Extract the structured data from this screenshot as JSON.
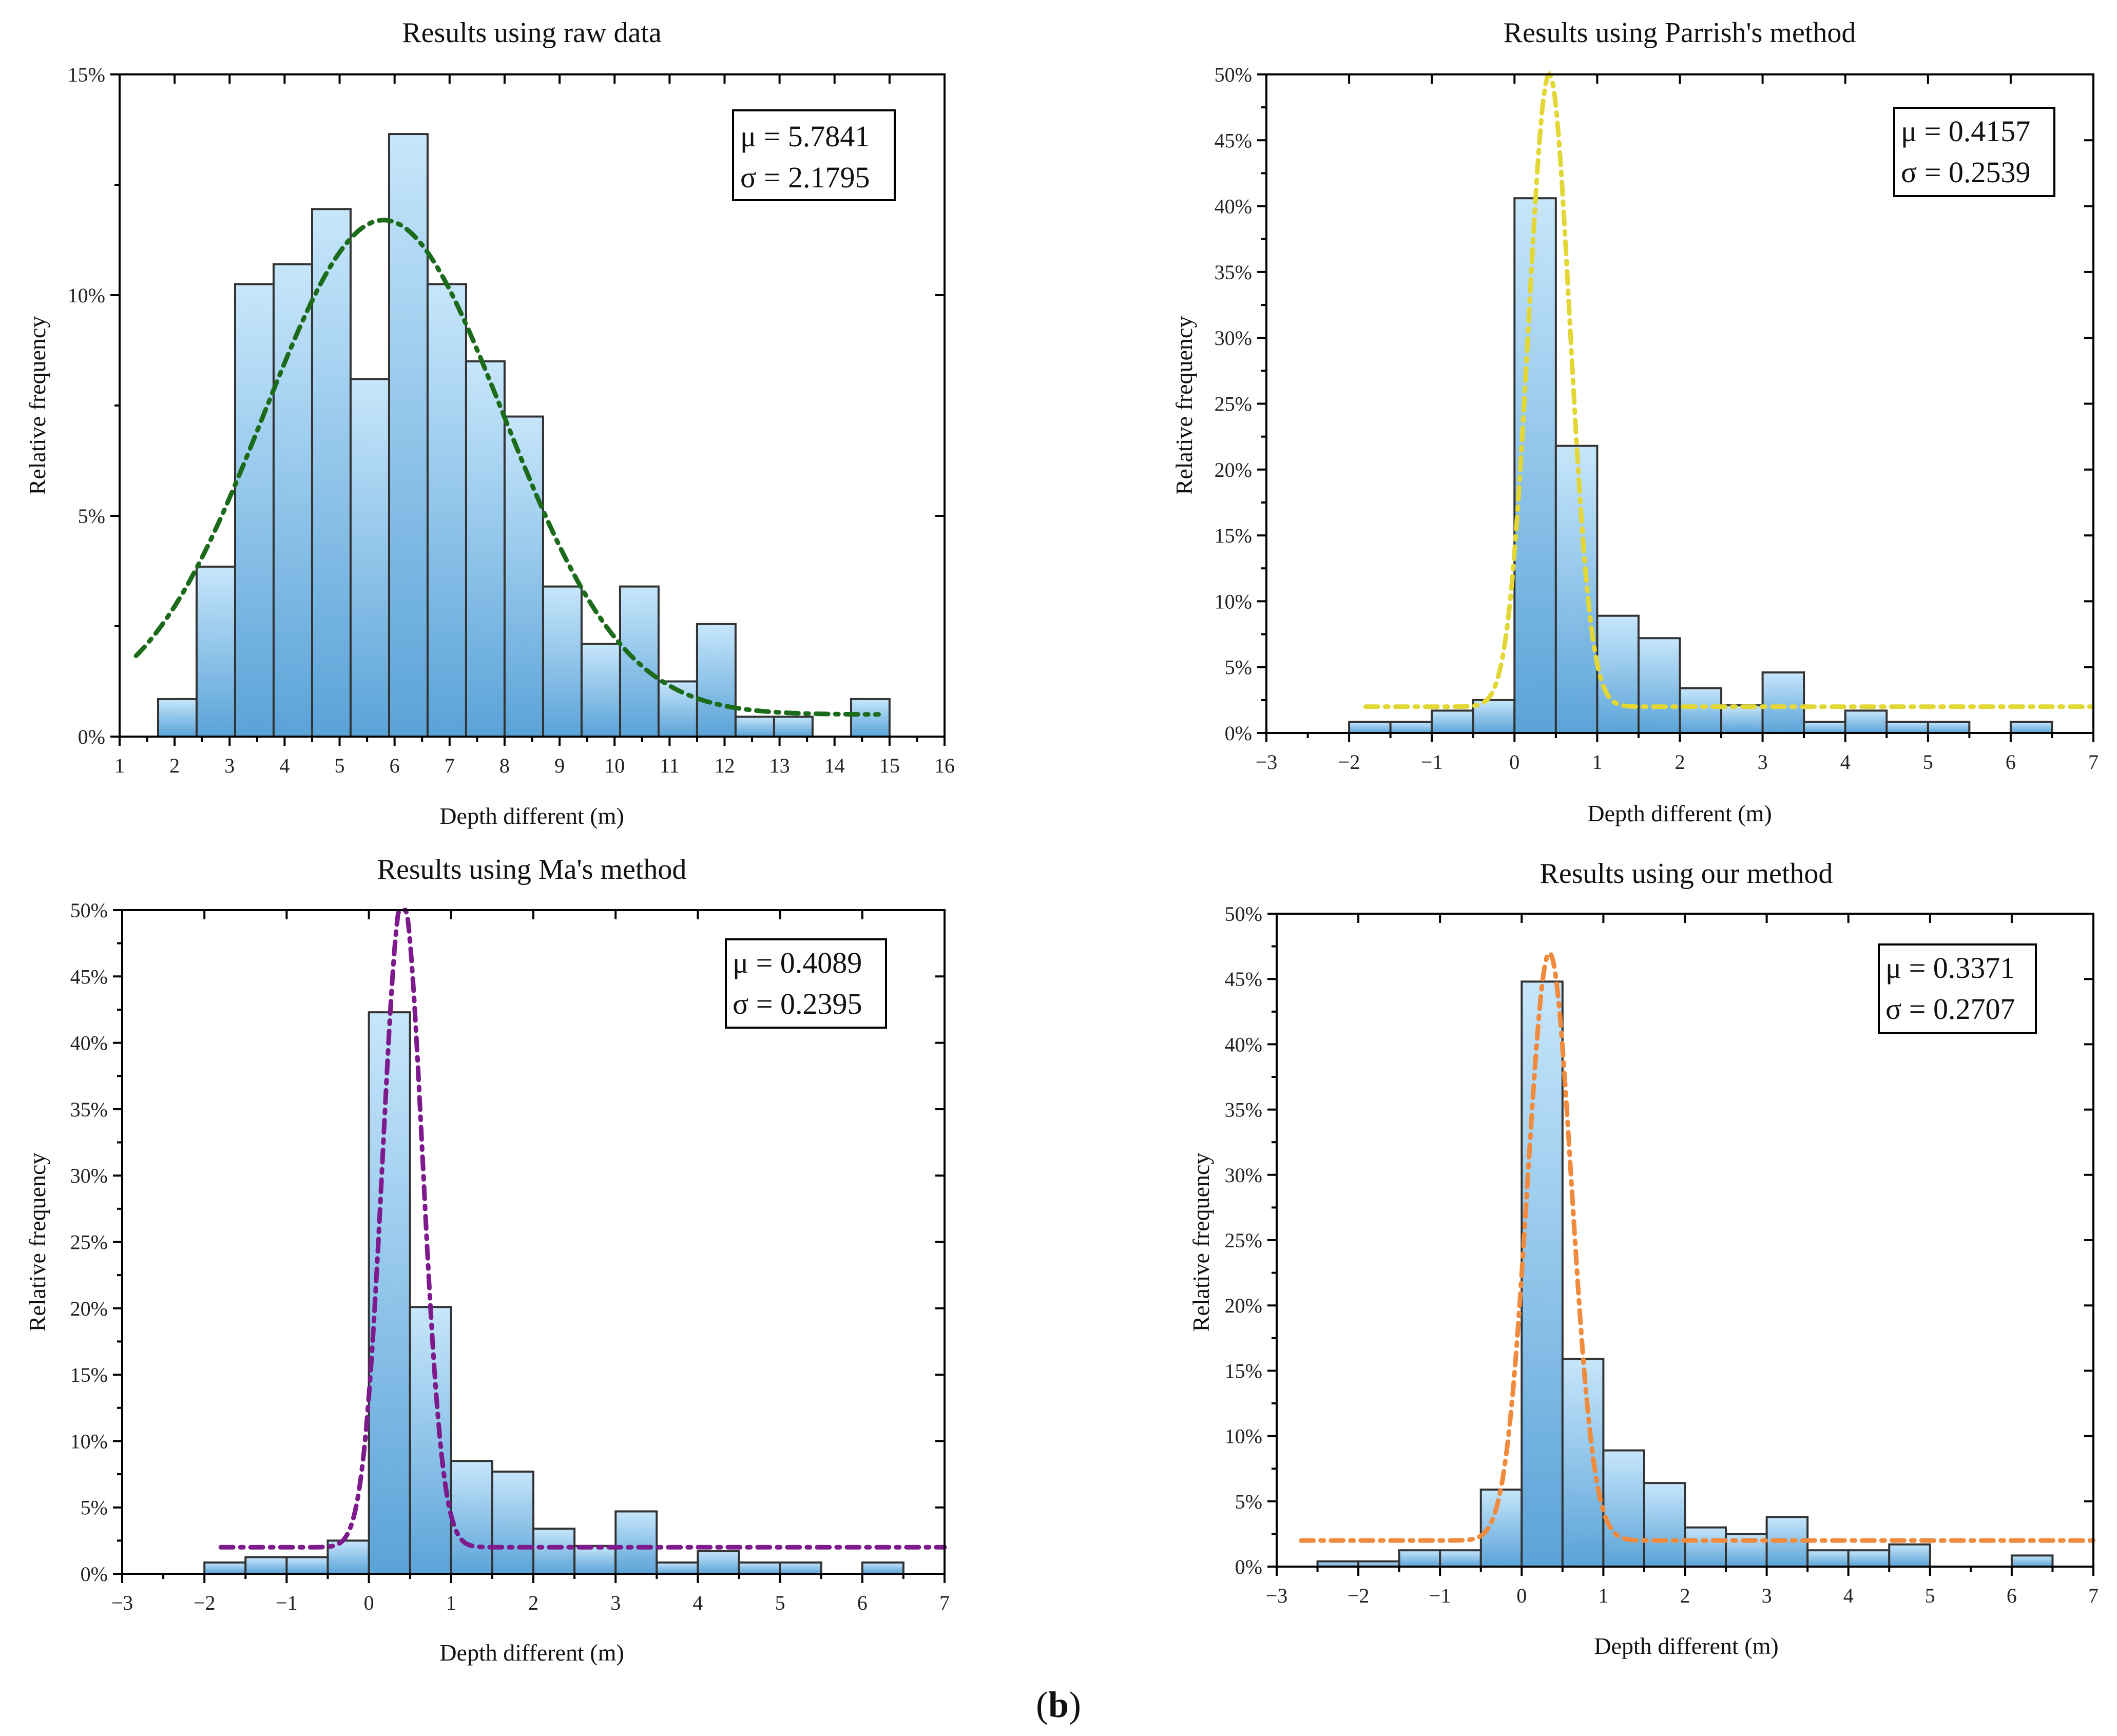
{
  "figure": {
    "caption_open": "(",
    "caption_letter": "b",
    "caption_close": ")"
  },
  "colors": {
    "bar_top": "#c7e6fb",
    "bar_bottom": "#5aa3d8",
    "bar_edge": "#333333",
    "green": "#1b6b1b",
    "yellow": "#e2d735",
    "purple": "#7d1a8c",
    "orange": "#f08a3c"
  },
  "chart_data": [
    {
      "id": "raw",
      "type": "bar",
      "title": "Results using raw data",
      "xlabel": "Depth different (m)",
      "ylabel": "Relative frequency",
      "xlim": [
        1,
        16
      ],
      "ylim": [
        0,
        15
      ],
      "xticks": [
        1,
        2,
        3,
        4,
        5,
        6,
        7,
        8,
        9,
        10,
        11,
        12,
        13,
        14,
        15,
        16
      ],
      "xtick_labels": [
        "1",
        "2",
        "3",
        "4",
        "5",
        "6",
        "7",
        "8",
        "9",
        "10",
        "11",
        "12",
        "13",
        "14",
        "15",
        "16"
      ],
      "yticks": [
        0,
        5,
        10,
        15
      ],
      "ytick_labels": [
        "0%",
        "5%",
        "10%",
        "15%"
      ],
      "bin_width": 0.7,
      "bins": [
        {
          "x0": 1.7,
          "value": 0.85
        },
        {
          "x0": 2.4,
          "value": 3.85
        },
        {
          "x0": 3.1,
          "value": 10.25
        },
        {
          "x0": 3.8,
          "value": 10.7
        },
        {
          "x0": 4.5,
          "value": 11.95
        },
        {
          "x0": 5.2,
          "value": 8.1
        },
        {
          "x0": 5.9,
          "value": 13.65
        },
        {
          "x0": 6.6,
          "value": 10.25
        },
        {
          "x0": 7.3,
          "value": 8.5
        },
        {
          "x0": 8.0,
          "value": 7.25
        },
        {
          "x0": 8.7,
          "value": 3.4
        },
        {
          "x0": 9.4,
          "value": 2.1
        },
        {
          "x0": 10.1,
          "value": 3.4
        },
        {
          "x0": 10.8,
          "value": 1.25
        },
        {
          "x0": 11.5,
          "value": 2.55
        },
        {
          "x0": 12.2,
          "value": 0.45
        },
        {
          "x0": 12.9,
          "value": 0.45
        },
        {
          "x0": 14.3,
          "value": 0.85
        }
      ],
      "fit": {
        "mu": 5.8,
        "sigma": 2.18,
        "peak": 11.7,
        "baseline": 0.5,
        "x_range": [
          1.3,
          14.8
        ],
        "color_key": "green",
        "dash": "24,14,6,14"
      },
      "stats": {
        "mu_text": "μ = 5.7841",
        "sigma_text": "σ = 2.1795"
      },
      "stats_pos": "top-right"
    },
    {
      "id": "parrish",
      "type": "bar",
      "title": "Results using Parrish's method",
      "xlabel": "Depth different (m)",
      "ylabel": "Relative frequency",
      "xlim": [
        -3,
        7
      ],
      "ylim": [
        0,
        50
      ],
      "xticks": [
        -3,
        -2,
        -1,
        0,
        1,
        2,
        3,
        4,
        5,
        6,
        7
      ],
      "xtick_labels": [
        "−3",
        "−2",
        "−1",
        "0",
        "1",
        "2",
        "3",
        "4",
        "5",
        "6",
        "7"
      ],
      "yticks": [
        0,
        5,
        10,
        15,
        20,
        25,
        30,
        35,
        40,
        45,
        50
      ],
      "ytick_labels": [
        "0%",
        "5%",
        "10%",
        "15%",
        "20%",
        "25%",
        "30%",
        "35%",
        "40%",
        "45%",
        "50%"
      ],
      "bin_width": 0.5,
      "bins": [
        {
          "x0": -2.0,
          "value": 0.85
        },
        {
          "x0": -1.5,
          "value": 0.85
        },
        {
          "x0": -1.0,
          "value": 1.7
        },
        {
          "x0": -0.5,
          "value": 2.5
        },
        {
          "x0": 0.0,
          "value": 40.6
        },
        {
          "x0": 0.5,
          "value": 21.8
        },
        {
          "x0": 1.0,
          "value": 8.9
        },
        {
          "x0": 1.5,
          "value": 7.2
        },
        {
          "x0": 2.0,
          "value": 3.4
        },
        {
          "x0": 2.5,
          "value": 2.1
        },
        {
          "x0": 3.0,
          "value": 4.6
        },
        {
          "x0": 3.5,
          "value": 0.85
        },
        {
          "x0": 4.0,
          "value": 1.7
        },
        {
          "x0": 4.5,
          "value": 0.85
        },
        {
          "x0": 5.0,
          "value": 0.85
        },
        {
          "x0": 6.0,
          "value": 0.85
        }
      ],
      "fit": {
        "mu": 0.42,
        "sigma": 0.25,
        "peak": 50,
        "baseline": 2.0,
        "x_range": [
          -1.8,
          7.0
        ],
        "color_key": "yellow",
        "dash": "24,14,6,14"
      },
      "stats": {
        "mu_text": "μ = 0.4157",
        "sigma_text": "σ = 0.2539"
      },
      "stats_pos": "top-right"
    },
    {
      "id": "ma",
      "type": "bar",
      "title": "Results using Ma's method",
      "xlabel": "Depth different (m)",
      "ylabel": "Relative frequency",
      "xlim": [
        -3,
        7
      ],
      "ylim": [
        0,
        50
      ],
      "xticks": [
        -3,
        -2,
        -1,
        0,
        1,
        2,
        3,
        4,
        5,
        6,
        7
      ],
      "xtick_labels": [
        "−3",
        "−2",
        "−1",
        "0",
        "1",
        "2",
        "3",
        "4",
        "5",
        "6",
        "7"
      ],
      "yticks": [
        0,
        5,
        10,
        15,
        20,
        25,
        30,
        35,
        40,
        45,
        50
      ],
      "ytick_labels": [
        "0%",
        "5%",
        "10%",
        "15%",
        "20%",
        "25%",
        "30%",
        "35%",
        "40%",
        "45%",
        "50%"
      ],
      "bin_width": 0.5,
      "bins": [
        {
          "x0": -2.0,
          "value": 0.85
        },
        {
          "x0": -1.5,
          "value": 1.25
        },
        {
          "x0": -1.0,
          "value": 1.25
        },
        {
          "x0": -0.5,
          "value": 2.5
        },
        {
          "x0": 0.0,
          "value": 42.3
        },
        {
          "x0": 0.5,
          "value": 20.1
        },
        {
          "x0": 1.0,
          "value": 8.5
        },
        {
          "x0": 1.5,
          "value": 7.7
        },
        {
          "x0": 2.0,
          "value": 3.4
        },
        {
          "x0": 2.5,
          "value": 2.1
        },
        {
          "x0": 3.0,
          "value": 4.7
        },
        {
          "x0": 3.5,
          "value": 0.85
        },
        {
          "x0": 4.0,
          "value": 1.7
        },
        {
          "x0": 4.5,
          "value": 0.85
        },
        {
          "x0": 5.0,
          "value": 0.85
        },
        {
          "x0": 6.0,
          "value": 0.85
        }
      ],
      "fit": {
        "mu": 0.41,
        "sigma": 0.24,
        "peak": 51,
        "baseline": 2.0,
        "x_range": [
          -1.8,
          7.0
        ],
        "color_key": "purple",
        "dash": "24,14,6,14"
      },
      "stats": {
        "mu_text": "μ = 0.4089",
        "sigma_text": "σ = 0.2395"
      },
      "stats_pos": "top-right"
    },
    {
      "id": "ours",
      "type": "bar",
      "title": "Results using our method",
      "xlabel": "Depth different (m)",
      "ylabel": "Relative frequency",
      "xlim": [
        -3,
        7
      ],
      "ylim": [
        0,
        50
      ],
      "xticks": [
        -3,
        -2,
        -1,
        0,
        1,
        2,
        3,
        4,
        5,
        6,
        7
      ],
      "xtick_labels": [
        "−3",
        "−2",
        "−1",
        "0",
        "1",
        "2",
        "3",
        "4",
        "5",
        "6",
        "7"
      ],
      "yticks": [
        0,
        5,
        10,
        15,
        20,
        25,
        30,
        35,
        40,
        45,
        50
      ],
      "ytick_labels": [
        "0%",
        "5%",
        "10%",
        "15%",
        "20%",
        "25%",
        "30%",
        "35%",
        "40%",
        "45%",
        "50%"
      ],
      "bin_width": 0.5,
      "bins": [
        {
          "x0": -2.5,
          "value": 0.4
        },
        {
          "x0": -2.0,
          "value": 0.4
        },
        {
          "x0": -1.5,
          "value": 1.25
        },
        {
          "x0": -1.0,
          "value": 1.25
        },
        {
          "x0": -0.5,
          "value": 5.9
        },
        {
          "x0": 0.0,
          "value": 44.8
        },
        {
          "x0": 0.5,
          "value": 15.9
        },
        {
          "x0": 1.0,
          "value": 8.9
        },
        {
          "x0": 1.5,
          "value": 6.4
        },
        {
          "x0": 2.0,
          "value": 3.0
        },
        {
          "x0": 2.5,
          "value": 2.5
        },
        {
          "x0": 3.0,
          "value": 3.8
        },
        {
          "x0": 3.5,
          "value": 1.25
        },
        {
          "x0": 4.0,
          "value": 1.25
        },
        {
          "x0": 4.5,
          "value": 1.7
        },
        {
          "x0": 6.0,
          "value": 0.85
        }
      ],
      "fit": {
        "mu": 0.34,
        "sigma": 0.27,
        "peak": 47,
        "baseline": 2.0,
        "x_range": [
          -2.7,
          7.0
        ],
        "color_key": "orange",
        "dash": "24,14,6,14"
      },
      "stats": {
        "mu_text": "μ = 0.3371",
        "sigma_text": "σ = 0.2707"
      },
      "stats_pos": "top-right"
    }
  ]
}
